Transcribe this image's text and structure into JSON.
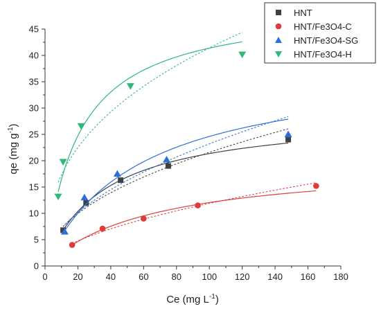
{
  "chart_data": {
    "type": "scatter",
    "xlabel": "Ce",
    "xlabel_unit": "mg L",
    "xlabel_unit_exp": "-1",
    "ylabel": "qe",
    "ylabel_unit": "mg g",
    "ylabel_unit_exp": "-1",
    "xlim": [
      0,
      180
    ],
    "ylim": [
      0,
      45
    ],
    "xticks": [
      0,
      20,
      40,
      60,
      80,
      100,
      120,
      140,
      160,
      180
    ],
    "yticks": [
      0,
      5,
      10,
      15,
      20,
      25,
      30,
      35,
      40,
      45
    ],
    "grid": false,
    "legend_position": "top-right",
    "series": [
      {
        "name": "HNT",
        "marker": "square",
        "color": "#404040",
        "x": [
          11,
          25,
          46,
          75,
          148
        ],
        "y": [
          6.8,
          12,
          16.3,
          19,
          24
        ]
      },
      {
        "name": "HNT/Fe3O4-C",
        "marker": "circle",
        "color": "#e03b3b",
        "x": [
          16.5,
          35,
          60,
          93,
          165
        ],
        "y": [
          4,
          7.1,
          9,
          11.5,
          15.2
        ]
      },
      {
        "name": "HNT/Fe3O4-SG",
        "marker": "triangle-up",
        "color": "#2d6fd8",
        "x": [
          12,
          24,
          44,
          74,
          148
        ],
        "y": [
          6.5,
          13,
          17.5,
          20.2,
          25
        ]
      },
      {
        "name": "HNT/Fe3O4-H",
        "marker": "triangle-down",
        "color": "#2eb87a",
        "x": [
          8,
          11,
          22,
          52,
          120
        ],
        "y": [
          13.2,
          19.8,
          26.6,
          34.2,
          40.2
        ]
      }
    ]
  }
}
